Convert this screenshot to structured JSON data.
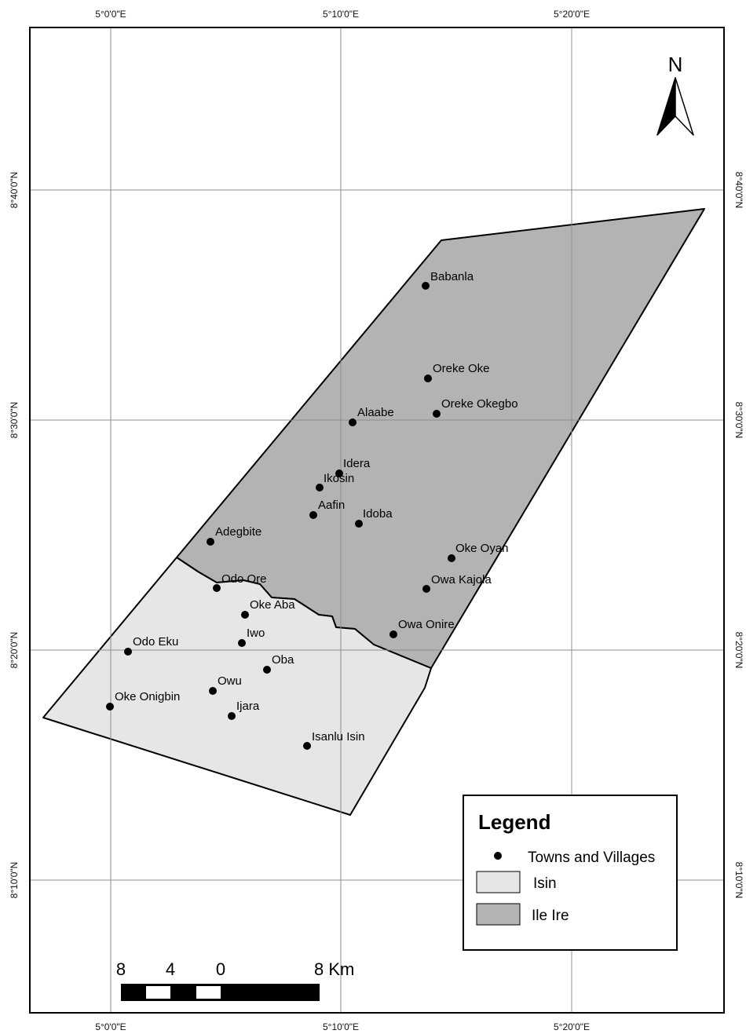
{
  "map": {
    "graticule": {
      "lon_labels": [
        "5°0'0\"E",
        "5°10'0\"E",
        "5°20'0\"E"
      ],
      "lat_labels": [
        "8°40'0\"N",
        "8°30'0\"N",
        "8°20'0\"N",
        "8°10'0\"N"
      ]
    },
    "regions": [
      {
        "name": "Isin",
        "color": "#e6e6e6"
      },
      {
        "name": "Ile Ire",
        "color": "#b3b3b3"
      }
    ],
    "towns": [
      {
        "name": "Babanla"
      },
      {
        "name": "Oreke Oke"
      },
      {
        "name": "Oreke Okegbo"
      },
      {
        "name": "Alaabe"
      },
      {
        "name": "Idera"
      },
      {
        "name": "Ikosin"
      },
      {
        "name": "Aafin"
      },
      {
        "name": "Idoba"
      },
      {
        "name": "Adegbite"
      },
      {
        "name": "Oke Oyan"
      },
      {
        "name": "Owa Kajola"
      },
      {
        "name": "Odo Ore"
      },
      {
        "name": "Oke Aba"
      },
      {
        "name": "Owa Onire"
      },
      {
        "name": "Iwo"
      },
      {
        "name": "Odo Eku"
      },
      {
        "name": "Oba"
      },
      {
        "name": "Owu"
      },
      {
        "name": "Oke Onigbin"
      },
      {
        "name": "Ijara"
      },
      {
        "name": "Isanlu Isin"
      }
    ],
    "north_arrow": {
      "label": "N"
    },
    "scale_bar": {
      "labels": [
        "8",
        "4",
        "0",
        "8 Km"
      ]
    },
    "legend": {
      "title": "Legend",
      "items": [
        {
          "label": "Towns and Villages",
          "symbol": "point"
        },
        {
          "label": "Isin",
          "symbol": "fill",
          "color": "#e6e6e6"
        },
        {
          "label": "Ile Ire",
          "symbol": "fill",
          "color": "#b3b3b3"
        }
      ]
    }
  }
}
